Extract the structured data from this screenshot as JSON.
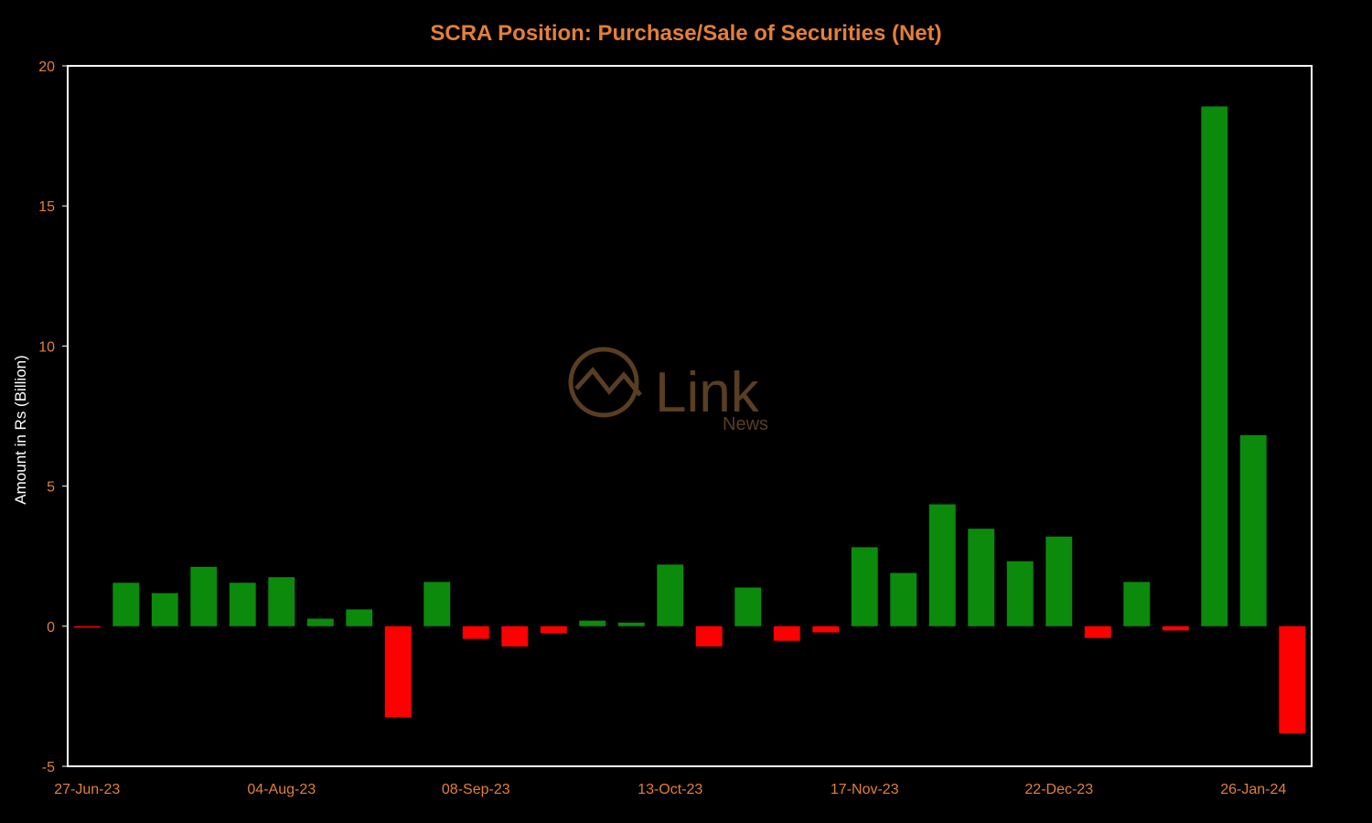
{
  "colors": {
    "background": "#000000",
    "title": "#e47f36",
    "ticks": "#e47f36",
    "axis_title": "#ffffff",
    "plot_border": "#ffffff",
    "positive": "#0b8a0b",
    "negative": "#ff0000",
    "watermark": "#5a3e22"
  },
  "watermark": {
    "brand": "Link",
    "sub": "News"
  },
  "chart_data": {
    "type": "bar",
    "title": "SCRA Position: Purchase/Sale of Securities (Net)",
    "xlabel": "",
    "ylabel": "Amount in Rs (Billion)",
    "ylim": [
      -5,
      20
    ],
    "yticks": [
      -5,
      0,
      5,
      10,
      15,
      20
    ],
    "x_tick_labels": [
      {
        "index": 0,
        "label": "27-Jun-23"
      },
      {
        "index": 5,
        "label": "04-Aug-23"
      },
      {
        "index": 10,
        "label": "08-Sep-23"
      },
      {
        "index": 15,
        "label": "13-Oct-23"
      },
      {
        "index": 20,
        "label": "17-Nov-23"
      },
      {
        "index": 25,
        "label": "22-Dec-23"
      },
      {
        "index": 30,
        "label": "26-Jan-24"
      }
    ],
    "grid": false,
    "legend": "none",
    "values": [
      -0.05,
      1.55,
      1.18,
      2.12,
      1.55,
      1.75,
      0.27,
      0.6,
      -3.25,
      1.58,
      -0.45,
      -0.72,
      -0.25,
      0.2,
      0.13,
      2.2,
      -0.72,
      1.38,
      -0.52,
      -0.22,
      2.82,
      1.9,
      4.35,
      3.48,
      2.32,
      3.2,
      -0.42,
      1.58,
      -0.15,
      18.55,
      6.82,
      -3.82
    ]
  }
}
